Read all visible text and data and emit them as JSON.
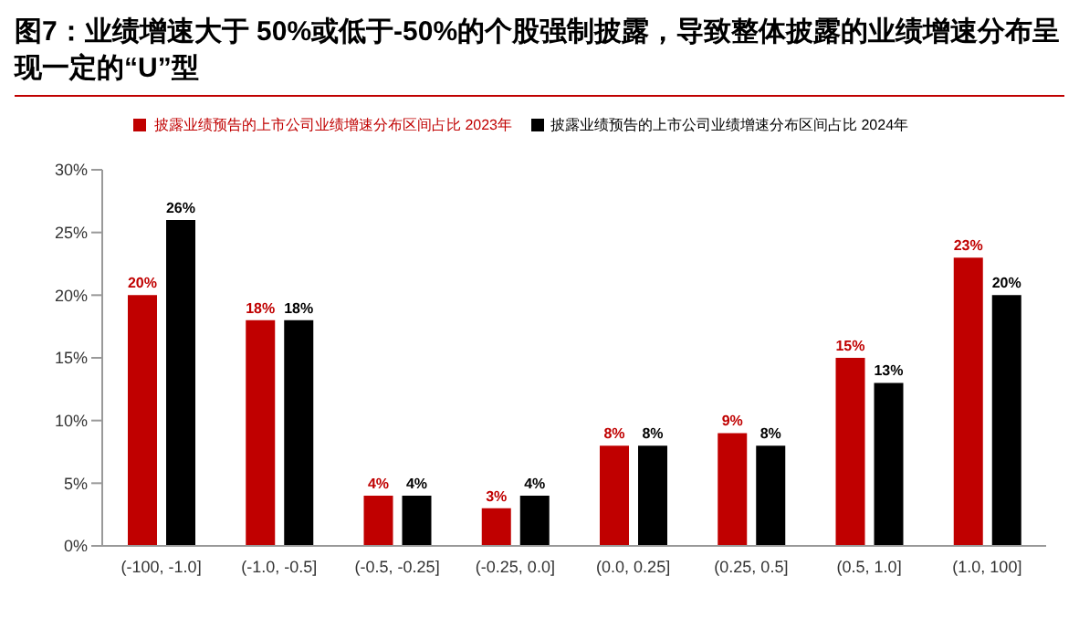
{
  "chart_data": {
    "type": "bar",
    "title": "图7：业绩增速大于 50%或低于-50%的个股强制披露，导致整体披露的业绩增速分布呈现一定的“U”型",
    "categories": [
      "(-100, -1.0]",
      "(-1.0, -0.5]",
      "(-0.5, -0.25]",
      "(-0.25, 0.0]",
      "(0.0, 0.25]",
      "(0.25, 0.5]",
      "(0.5, 1.0]",
      "(1.0, 100]"
    ],
    "series": [
      {
        "name": "披露业绩预告的上市公司业绩增速分布区间占比 2023年",
        "color": "#c00000",
        "values": [
          20,
          18,
          4,
          3,
          8,
          9,
          15,
          23
        ],
        "value_labels": [
          "20%",
          "18%",
          "4%",
          "3%",
          "8%",
          "9%",
          "15%",
          "23%"
        ]
      },
      {
        "name": "披露业绩预告的上市公司业绩增速分布区间占比 2024年",
        "color": "#000000",
        "values": [
          26,
          18,
          4,
          4,
          8,
          8,
          13,
          20
        ],
        "value_labels": [
          "26%",
          "18%",
          "4%",
          "4%",
          "8%",
          "8%",
          "13%",
          "20%"
        ]
      }
    ],
    "ylim": [
      0,
      30
    ],
    "yticks": [
      {
        "value": 0,
        "label": "0%"
      },
      {
        "value": 5,
        "label": "5%"
      },
      {
        "value": 10,
        "label": "10%"
      },
      {
        "value": 15,
        "label": "15%"
      },
      {
        "value": 20,
        "label": "20%"
      },
      {
        "value": 25,
        "label": "25%"
      },
      {
        "value": 30,
        "label": "30%"
      }
    ],
    "grid": false,
    "legend": "top"
  }
}
